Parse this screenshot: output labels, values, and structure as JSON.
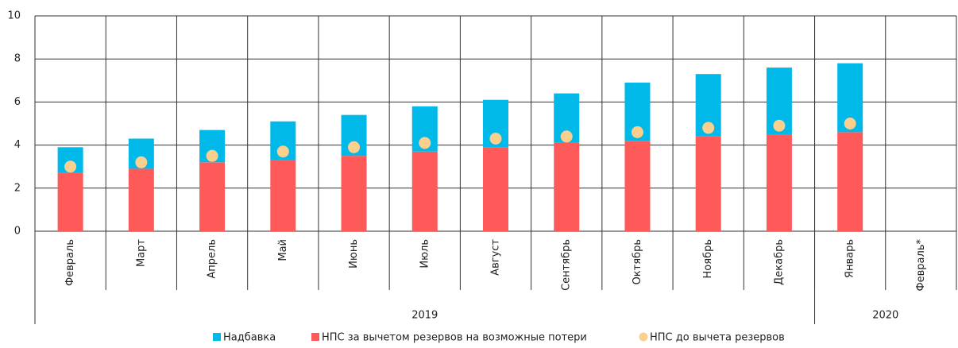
{
  "chart_data": {
    "type": "stacked-bar-dot",
    "categories": [
      "Февраль",
      "Март",
      "Апрель",
      "Май",
      "Июнь",
      "Июль",
      "Август",
      "Сентябрь",
      "Октябрь",
      "Ноябрь",
      "Декабрь",
      "Январь",
      "Февраль*"
    ],
    "x_groups": [
      {
        "label": "2019",
        "span": 11
      },
      {
        "label": "2020",
        "span": 2
      }
    ],
    "series": [
      {
        "name": "Надбавка",
        "color": "#00b9e8",
        "kind": "bar",
        "values": [
          1.2,
          1.4,
          1.5,
          1.8,
          1.9,
          2.1,
          2.2,
          2.3,
          2.7,
          2.9,
          3.1,
          3.2,
          null
        ]
      },
      {
        "name": "НПС за вычетом резервов на возможные потери",
        "color": "#ff5a5a",
        "kind": "bar",
        "values": [
          2.7,
          2.9,
          3.2,
          3.3,
          3.5,
          3.7,
          3.9,
          4.1,
          4.2,
          4.4,
          4.5,
          4.6,
          null
        ]
      },
      {
        "name": "НПС до вычета резервов",
        "color": "#fbcf8e",
        "kind": "dot",
        "values": [
          3.0,
          3.2,
          3.5,
          3.7,
          3.9,
          4.1,
          4.3,
          4.4,
          4.6,
          4.8,
          4.9,
          5.0,
          null
        ]
      }
    ],
    "stack_order": [
      1,
      0
    ],
    "ylim": [
      0,
      10
    ],
    "yticks": [
      0,
      2,
      4,
      6,
      8,
      10
    ],
    "grid": true
  }
}
